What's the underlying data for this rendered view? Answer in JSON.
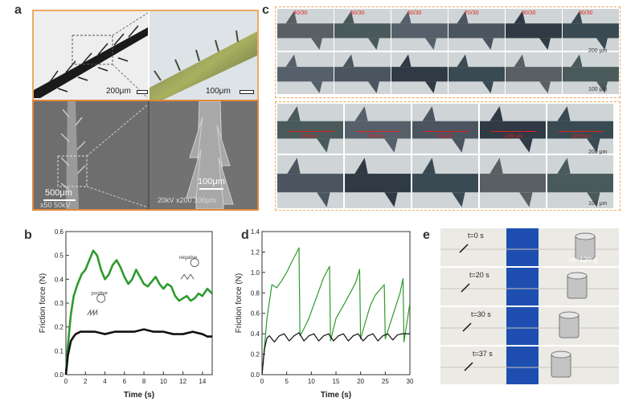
{
  "panels": {
    "a": {
      "letter": "a",
      "scale_top_left": "200μm",
      "scale_top_right": "100μm",
      "scale_bottom_left": "500μm",
      "scale_bottom_right": "100μm",
      "sem_info_left": "x50  50kV",
      "sem_info_right": "20kV   x200  100μm"
    },
    "b": {
      "letter": "b",
      "legend_neg": "negative",
      "legend_pos": "positive"
    },
    "c": {
      "letter": "c",
      "ratios": [
        "40/30",
        "50/30",
        "60/30",
        "70/30",
        "80/30",
        "90/30"
      ],
      "scale_200": "200 μm",
      "scale_100": "100 μm",
      "scale_200b": "200 μm",
      "scale_100b": "100 μm",
      "measurements": [
        "456 μm",
        "666 μm",
        "912 μm",
        "1368 μm",
        "2280 μm"
      ]
    },
    "d": {
      "letter": "d"
    },
    "e": {
      "letter": "e",
      "times": [
        "t=0 s",
        "t=20 s",
        "t=30 s",
        "t=37 s"
      ],
      "mass": "m=120 g"
    }
  },
  "chart_data": [
    {
      "id": "b",
      "type": "line",
      "xlabel": "Time (s)",
      "ylabel": "Friction force (N)",
      "xlim": [
        0,
        15
      ],
      "ylim": [
        0,
        0.6
      ],
      "xticks": [
        0,
        2,
        4,
        6,
        8,
        10,
        12,
        14
      ],
      "yticks": [
        0.0,
        0.1,
        0.2,
        0.3,
        0.4,
        0.5,
        0.6
      ],
      "series": [
        {
          "color": "#2e9a2e",
          "x": [
            0,
            0.2,
            0.5,
            0.8,
            1.2,
            1.6,
            2.0,
            2.5,
            2.8,
            3.2,
            3.6,
            4.0,
            4.4,
            4.8,
            5.2,
            5.6,
            6.0,
            6.4,
            6.8,
            7.2,
            7.6,
            8.0,
            8.4,
            8.8,
            9.2,
            9.6,
            10.0,
            10.4,
            10.8,
            11.2,
            11.6,
            12.0,
            12.4,
            12.8,
            13.2,
            13.6,
            14.0,
            14.5,
            15.0
          ],
          "y": [
            0,
            0.12,
            0.25,
            0.33,
            0.38,
            0.42,
            0.44,
            0.49,
            0.52,
            0.5,
            0.44,
            0.4,
            0.42,
            0.46,
            0.48,
            0.45,
            0.41,
            0.38,
            0.4,
            0.44,
            0.41,
            0.38,
            0.37,
            0.39,
            0.41,
            0.38,
            0.36,
            0.38,
            0.37,
            0.33,
            0.31,
            0.32,
            0.33,
            0.31,
            0.32,
            0.34,
            0.33,
            0.36,
            0.34
          ]
        },
        {
          "color": "#111111",
          "x": [
            0,
            0.2,
            0.5,
            0.8,
            1.0,
            1.5,
            2.0,
            3.0,
            4.0,
            5.0,
            6.0,
            7.0,
            8.0,
            9.0,
            10.0,
            11.0,
            12.0,
            13.0,
            14.0,
            14.5,
            15.0
          ],
          "y": [
            0,
            0.08,
            0.14,
            0.16,
            0.17,
            0.18,
            0.18,
            0.18,
            0.17,
            0.18,
            0.18,
            0.18,
            0.19,
            0.18,
            0.18,
            0.17,
            0.17,
            0.18,
            0.17,
            0.16,
            0.16
          ]
        }
      ]
    },
    {
      "id": "d",
      "type": "line",
      "xlabel": "Time (s)",
      "ylabel": "Friction force (N)",
      "xlim": [
        0,
        30
      ],
      "ylim": [
        0,
        1.4
      ],
      "xticks": [
        0,
        5,
        10,
        15,
        20,
        25,
        30
      ],
      "yticks": [
        0.0,
        0.2,
        0.4,
        0.6,
        0.8,
        1.0,
        1.2,
        1.4
      ],
      "series": [
        {
          "color": "#2e9a2e",
          "x": [
            0,
            1,
            2,
            3,
            4,
            5,
            6,
            7.5,
            7.7,
            8.5,
            9.5,
            11,
            12.5,
            13.7,
            13.9,
            15,
            17,
            19,
            19.8,
            20.0,
            21,
            22,
            23,
            24.8,
            25.0,
            26,
            27,
            28,
            28.6,
            28.8,
            30
          ],
          "y": [
            0,
            0.55,
            0.88,
            0.85,
            0.92,
            1.0,
            1.1,
            1.24,
            0.38,
            0.45,
            0.55,
            0.75,
            0.95,
            1.06,
            0.33,
            0.55,
            0.72,
            0.9,
            1.03,
            0.35,
            0.52,
            0.68,
            0.78,
            0.88,
            0.35,
            0.5,
            0.65,
            0.8,
            0.94,
            0.32,
            0.7
          ]
        },
        {
          "color": "#111111",
          "x": [
            0,
            0.5,
            1,
            1.5,
            2.5,
            3.5,
            4.5,
            5.5,
            6.5,
            7.5,
            8.5,
            9.5,
            10.5,
            11.5,
            12.5,
            13.5,
            14.5,
            15.5,
            16.5,
            17.5,
            18.5,
            19.5,
            20.5,
            21.5,
            22.5,
            23.5,
            24.5,
            25.5,
            26.5,
            27.5,
            28.5,
            29.5,
            30
          ],
          "y": [
            0,
            0.25,
            0.36,
            0.38,
            0.32,
            0.38,
            0.4,
            0.33,
            0.38,
            0.41,
            0.33,
            0.38,
            0.4,
            0.33,
            0.38,
            0.4,
            0.33,
            0.38,
            0.4,
            0.33,
            0.38,
            0.4,
            0.33,
            0.38,
            0.4,
            0.33,
            0.38,
            0.4,
            0.34,
            0.39,
            0.4,
            0.4,
            0.4
          ]
        }
      ]
    }
  ]
}
